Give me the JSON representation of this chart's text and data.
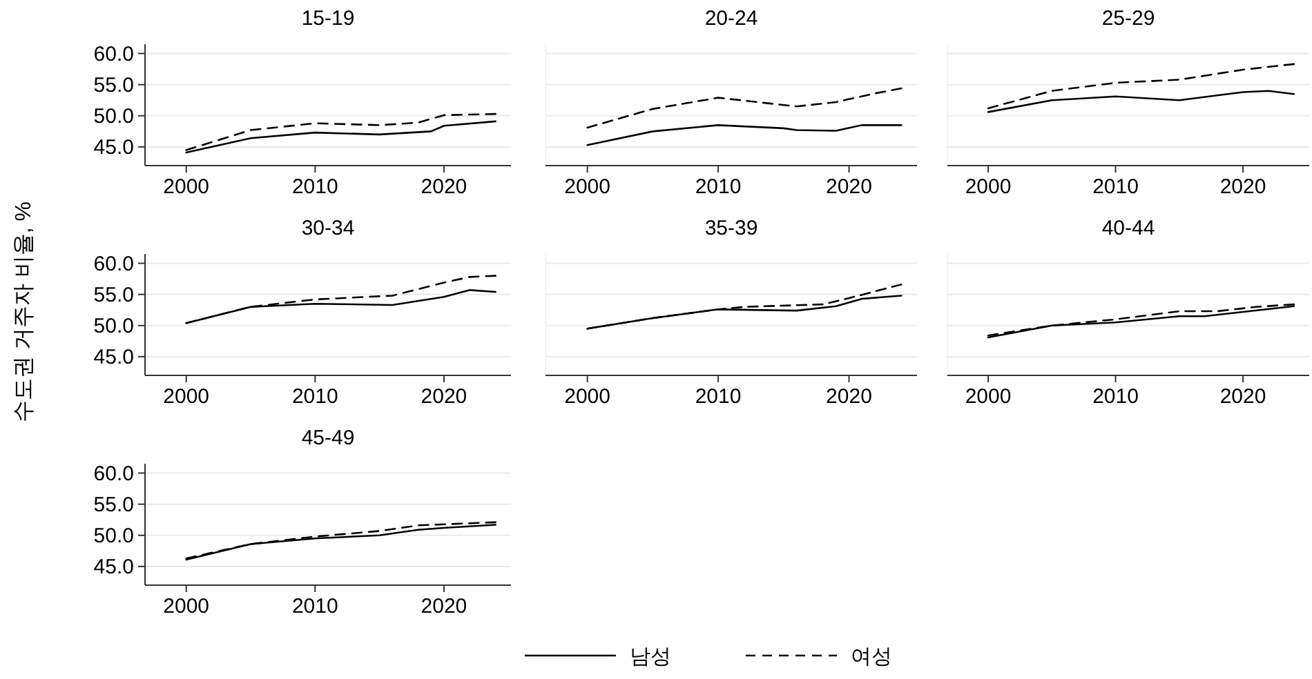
{
  "chart_data": [
    {
      "type": "line",
      "title": "15-19",
      "ylabel": "수도권 거주자 비율, %",
      "legend": "bottom",
      "grid": "y",
      "xlim": [
        1996.8,
        2025.2
      ],
      "ylim": [
        42,
        61.5
      ],
      "xticks": [
        2000,
        2010,
        2020
      ],
      "yticks": [
        {
          "value": 45,
          "label": "45.0"
        },
        {
          "value": 50,
          "label": "50.0"
        },
        {
          "value": 55,
          "label": "55.0"
        },
        {
          "value": 60,
          "label": "60.0"
        }
      ],
      "series": [
        {
          "name": "남성",
          "color": "#000000",
          "line_style": "solid",
          "x": [
            2000,
            2005,
            2010,
            2015,
            2019,
            2020,
            2024
          ],
          "values": [
            44.1,
            46.4,
            47.3,
            47.0,
            47.5,
            48.4,
            49.1
          ]
        },
        {
          "name": "여성",
          "color": "#000000",
          "line_style": "dashed",
          "x": [
            2000,
            2005,
            2010,
            2015,
            2018,
            2020,
            2024
          ],
          "values": [
            44.5,
            47.7,
            48.8,
            48.5,
            48.9,
            50.1,
            50.3
          ]
        }
      ]
    },
    {
      "type": "line",
      "title": "20-24",
      "tick_labels": "x",
      "grid": "y",
      "xlim": [
        1996.8,
        2025.2
      ],
      "ylim": [
        42,
        61.5
      ],
      "xticks": [
        2000,
        2010,
        2020
      ],
      "yticks": [
        {
          "value": 45,
          "label": "45.0"
        },
        {
          "value": 50,
          "label": "50.0"
        },
        {
          "value": 55,
          "label": "55.0"
        },
        {
          "value": 60,
          "label": "60.0"
        }
      ],
      "series": [
        {
          "name": "남성",
          "color": "#000000",
          "line_style": "solid",
          "x": [
            2000,
            2005,
            2010,
            2015,
            2016,
            2019,
            2021,
            2024
          ],
          "values": [
            45.3,
            47.5,
            48.5,
            48.0,
            47.7,
            47.6,
            48.5,
            48.5
          ]
        },
        {
          "name": "여성",
          "color": "#000000",
          "line_style": "dashed",
          "x": [
            2000,
            2005,
            2010,
            2016,
            2019,
            2022,
            2024
          ],
          "values": [
            48.1,
            51.1,
            52.9,
            51.5,
            52.2,
            53.6,
            54.4
          ]
        }
      ]
    },
    {
      "type": "line",
      "title": "25-29",
      "tick_labels": "x",
      "grid": "y",
      "xlim": [
        1996.8,
        2025.2
      ],
      "ylim": [
        42,
        61.5
      ],
      "xticks": [
        2000,
        2010,
        2020
      ],
      "yticks": [
        {
          "value": 45,
          "label": "45.0"
        },
        {
          "value": 50,
          "label": "50.0"
        },
        {
          "value": 55,
          "label": "55.0"
        },
        {
          "value": 60,
          "label": "60.0"
        }
      ],
      "series": [
        {
          "name": "남성",
          "color": "#000000",
          "line_style": "solid",
          "x": [
            2000,
            2005,
            2010,
            2015,
            2020,
            2022,
            2024
          ],
          "values": [
            50.6,
            52.5,
            53.1,
            52.5,
            53.8,
            54.0,
            53.5
          ]
        },
        {
          "name": "여성",
          "color": "#000000",
          "line_style": "dashed",
          "x": [
            2000,
            2005,
            2010,
            2015,
            2020,
            2024
          ],
          "values": [
            51.2,
            54.0,
            55.3,
            55.8,
            57.4,
            58.3
          ]
        }
      ]
    },
    {
      "type": "line",
      "title": "30-34",
      "grid": "y",
      "xlim": [
        1996.8,
        2025.2
      ],
      "ylim": [
        42,
        61.5
      ],
      "xticks": [
        2000,
        2010,
        2020
      ],
      "yticks": [
        {
          "value": 45,
          "label": "45.0"
        },
        {
          "value": 50,
          "label": "50.0"
        },
        {
          "value": 55,
          "label": "55.0"
        },
        {
          "value": 60,
          "label": "60.0"
        }
      ],
      "series": [
        {
          "name": "남성",
          "color": "#000000",
          "line_style": "solid",
          "x": [
            2000,
            2005,
            2010,
            2016,
            2020,
            2022,
            2024
          ],
          "values": [
            50.4,
            53.0,
            53.5,
            53.3,
            54.6,
            55.7,
            55.4
          ]
        },
        {
          "name": "여성",
          "color": "#000000",
          "line_style": "dashed",
          "x": [
            2000,
            2005,
            2010,
            2016,
            2020,
            2022,
            2024
          ],
          "values": [
            50.4,
            53.0,
            54.2,
            54.8,
            56.9,
            57.8,
            58.0
          ]
        }
      ]
    },
    {
      "type": "line",
      "title": "35-39",
      "tick_labels": "x",
      "grid": "y",
      "xlim": [
        1996.8,
        2025.2
      ],
      "ylim": [
        42,
        61.5
      ],
      "xticks": [
        2000,
        2010,
        2020
      ],
      "yticks": [
        {
          "value": 45,
          "label": "45.0"
        },
        {
          "value": 50,
          "label": "50.0"
        },
        {
          "value": 55,
          "label": "55.0"
        },
        {
          "value": 60,
          "label": "60.0"
        }
      ],
      "series": [
        {
          "name": "남성",
          "color": "#000000",
          "line_style": "solid",
          "x": [
            2000,
            2005,
            2010,
            2016,
            2019,
            2021,
            2024
          ],
          "values": [
            49.5,
            51.2,
            52.6,
            52.4,
            53.1,
            54.3,
            54.8
          ]
        },
        {
          "name": "여성",
          "color": "#000000",
          "line_style": "dashed",
          "x": [
            2000,
            2005,
            2010,
            2012,
            2018,
            2020,
            2024
          ],
          "values": [
            49.5,
            51.2,
            52.6,
            53.0,
            53.4,
            54.4,
            56.6
          ]
        }
      ]
    },
    {
      "type": "line",
      "title": "40-44",
      "tick_labels": "x",
      "grid": "y",
      "xlim": [
        1996.8,
        2025.2
      ],
      "ylim": [
        42,
        61.5
      ],
      "xticks": [
        2000,
        2010,
        2020
      ],
      "yticks": [
        {
          "value": 45,
          "label": "45.0"
        },
        {
          "value": 50,
          "label": "50.0"
        },
        {
          "value": 55,
          "label": "55.0"
        },
        {
          "value": 60,
          "label": "60.0"
        }
      ],
      "series": [
        {
          "name": "남성",
          "color": "#000000",
          "line_style": "solid",
          "x": [
            2000,
            2005,
            2010,
            2015,
            2017,
            2020,
            2024
          ],
          "values": [
            48.1,
            50.0,
            50.5,
            51.5,
            51.5,
            52.2,
            53.1
          ]
        },
        {
          "name": "여성",
          "color": "#000000",
          "line_style": "dashed",
          "x": [
            2000,
            2005,
            2010,
            2015,
            2018,
            2021,
            2024
          ],
          "values": [
            48.4,
            50.0,
            51.0,
            52.3,
            52.3,
            53.0,
            53.4
          ]
        }
      ]
    },
    {
      "type": "line",
      "title": "45-49",
      "grid": "y",
      "xlim": [
        1996.8,
        2025.2
      ],
      "ylim": [
        42,
        61.5
      ],
      "xticks": [
        2000,
        2010,
        2020
      ],
      "yticks": [
        {
          "value": 45,
          "label": "45.0"
        },
        {
          "value": 50,
          "label": "50.0"
        },
        {
          "value": 55,
          "label": "55.0"
        },
        {
          "value": 60,
          "label": "60.0"
        }
      ],
      "series": [
        {
          "name": "남성",
          "color": "#000000",
          "line_style": "solid",
          "x": [
            2000,
            2005,
            2010,
            2015,
            2018,
            2020,
            2024
          ],
          "values": [
            46.1,
            48.6,
            49.5,
            50.0,
            50.9,
            51.2,
            51.7
          ]
        },
        {
          "name": "여성",
          "color": "#000000",
          "line_style": "dashed",
          "x": [
            2000,
            2005,
            2010,
            2015,
            2018,
            2024
          ],
          "values": [
            46.3,
            48.6,
            49.8,
            50.7,
            51.6,
            52.1
          ]
        }
      ]
    }
  ]
}
